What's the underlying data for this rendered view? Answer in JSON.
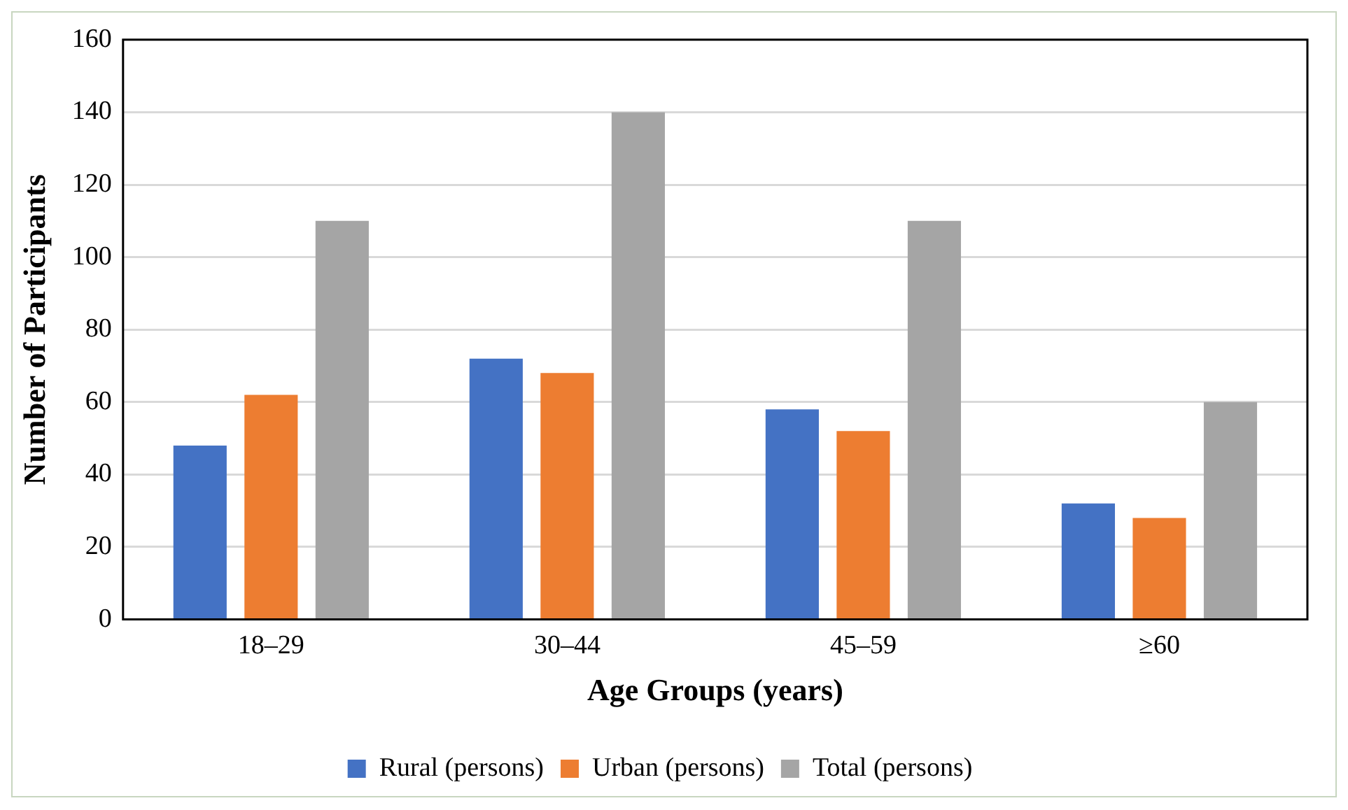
{
  "chart_data": {
    "type": "bar",
    "xlabel": "Age Groups (years)",
    "ylabel": "Number of Participants",
    "categories": [
      "18–29",
      "30–44",
      "45–59",
      "≥60"
    ],
    "series": [
      {
        "name": "Rural (persons)",
        "color": "#4472c4",
        "values": [
          48,
          72,
          58,
          32
        ]
      },
      {
        "name": "Urban (persons)",
        "color": "#ed7d31",
        "values": [
          62,
          68,
          52,
          28
        ]
      },
      {
        "name": "Total (persons)",
        "color": "#a5a5a5",
        "values": [
          110,
          140,
          110,
          60
        ]
      }
    ],
    "ylim": [
      0,
      160
    ],
    "yticks": [
      0,
      20,
      40,
      60,
      80,
      100,
      120,
      140,
      160
    ],
    "grid": "y",
    "legend": "bottom"
  }
}
